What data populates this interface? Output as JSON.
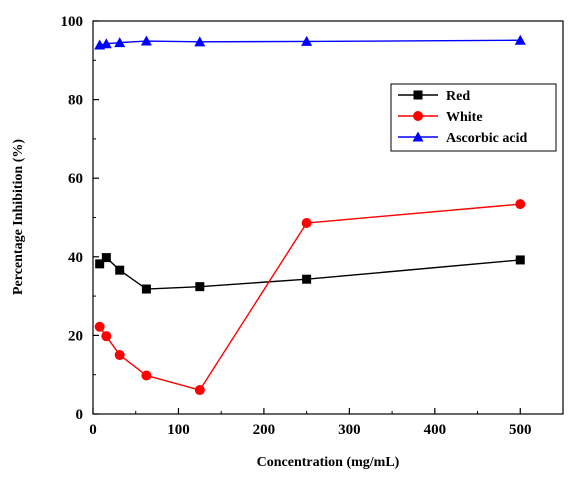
{
  "chart_data": {
    "type": "line",
    "xlabel": "Concentration (mg/mL)",
    "ylabel": "Percentage Inhibition (%)",
    "xlim": [
      0,
      550
    ],
    "ylim": [
      0,
      100
    ],
    "xticks": [
      0,
      100,
      200,
      300,
      400,
      500
    ],
    "yticks": [
      0,
      20,
      40,
      60,
      80,
      100
    ],
    "legend_position": "top-right",
    "series": [
      {
        "name": "Red",
        "color": "#000000",
        "marker": "square",
        "x": [
          7.8,
          15.6,
          31.25,
          62.5,
          125,
          250,
          500
        ],
        "y": [
          38.2,
          39.8,
          36.6,
          31.8,
          32.4,
          34.3,
          39.2
        ]
      },
      {
        "name": "White",
        "color": "#ff0000",
        "marker": "circle",
        "x": [
          7.8,
          15.6,
          31.25,
          62.5,
          125,
          250,
          500
        ],
        "y": [
          22.2,
          19.8,
          15.0,
          9.8,
          6.1,
          48.6,
          53.4
        ]
      },
      {
        "name": "Ascorbic acid",
        "color": "#0000ff",
        "marker": "triangle",
        "x": [
          7.8,
          15.6,
          31.25,
          62.5,
          125,
          250,
          500
        ],
        "y": [
          93.9,
          94.2,
          94.5,
          94.9,
          94.7,
          94.8,
          95.1
        ]
      }
    ]
  }
}
